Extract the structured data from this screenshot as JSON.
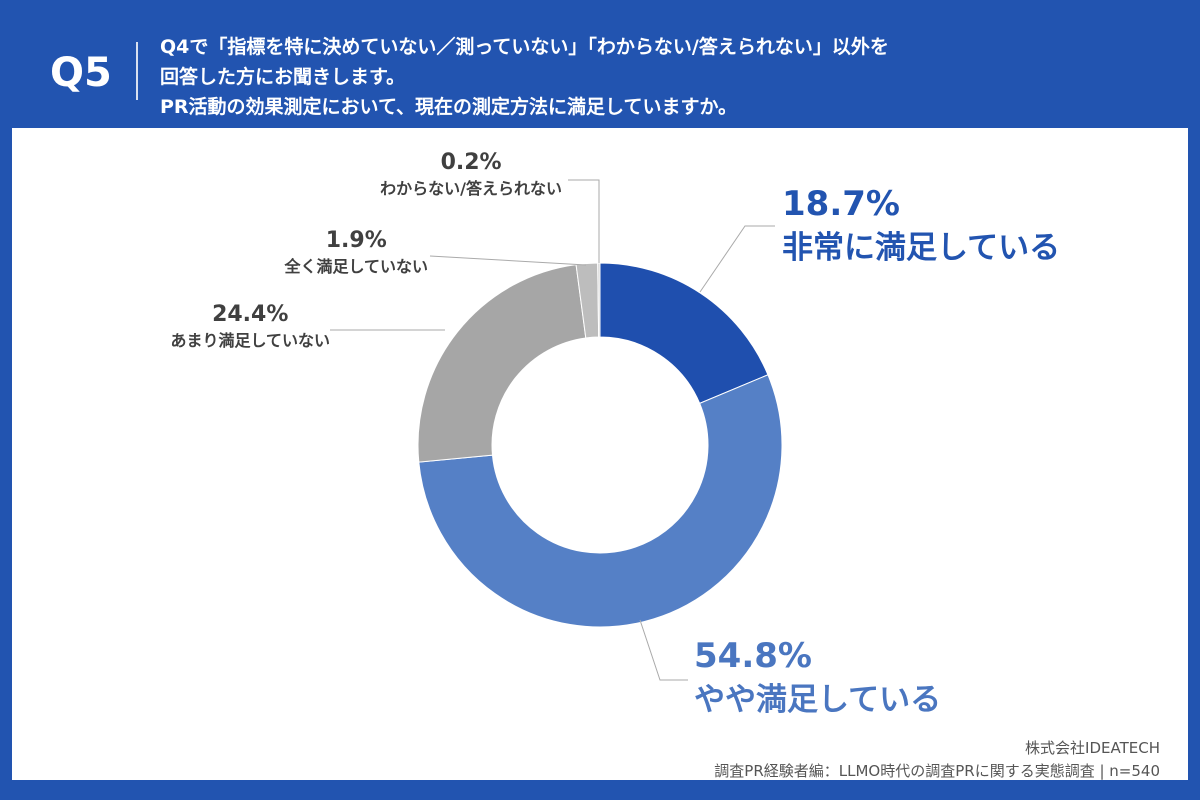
{
  "header": {
    "q_number": "Q5",
    "lines": [
      "Q4で「指標を特に決めていない／測っていない」「わからない/答えられない」以外を",
      "回答した方にお聞きします。",
      "PR活動の効果測定において、現在の測定方法に満足していますか。"
    ]
  },
  "chart_data": {
    "type": "pie",
    "donut": true,
    "categories": [
      "非常に満足している",
      "やや満足している",
      "あまり満足していない",
      "全く満足していない",
      "わからない/答えられない"
    ],
    "values": [
      18.7,
      54.8,
      24.4,
      1.9,
      0.2
    ],
    "value_labels": [
      "18.7%",
      "54.8%",
      "24.4%",
      "1.9%",
      "0.2%"
    ],
    "colors": [
      "#1f4fae",
      "#5580c6",
      "#a6a6a6",
      "#bdbdbd",
      "#d4d4d4"
    ]
  },
  "footer": {
    "company": "株式会社IDEATECH",
    "source": "調査PR経験者編：LLMO時代の調査PRに関する実態調査 | n=540"
  }
}
